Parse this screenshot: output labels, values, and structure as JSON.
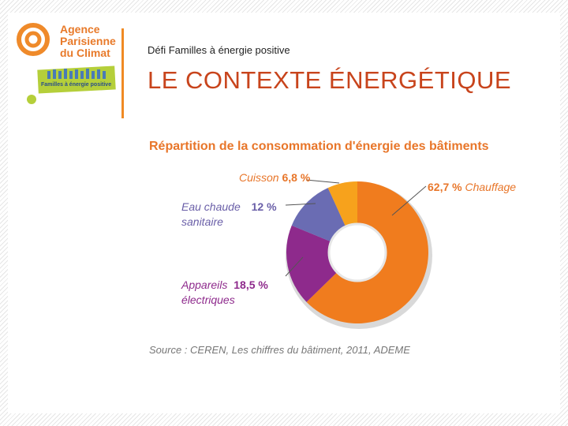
{
  "header": {
    "org_name": "Agence\nParisienne\ndu Climat",
    "badge_text": "Familles à énergie positive",
    "subtitle": "Défi Familles à énergie positive",
    "title": "LE CONTEXTE ÉNERGÉTIQUE"
  },
  "chart_data": {
    "type": "pie",
    "title": "Répartition de la consommation d'énergie des bâtiments",
    "series": [
      {
        "name": "Chauffage",
        "value": 62.7,
        "label": "62,7 %",
        "color": "#f07c1e"
      },
      {
        "name": "Appareils électriques",
        "value": 18.5,
        "label": "18,5 %",
        "color": "#8e2a8c"
      },
      {
        "name": "Eau chaude sanitaire",
        "value": 12,
        "label": "12 %",
        "color": "#6a6cb3"
      },
      {
        "name": "Cuisson",
        "value": 6.8,
        "label": "6,8 %",
        "color": "#f7a21c"
      }
    ],
    "labels": {
      "chauffage_value": "62,7 %",
      "chauffage_name": "Chauffage",
      "cuisson_name": "Cuisson",
      "cuisson_value": "6,8 %",
      "eau_name_1": "Eau chaude",
      "eau_name_2": "sanitaire",
      "eau_value": "12 %",
      "app_name_1": "Appareils",
      "app_name_2": "électriques",
      "app_value": "18,5 %"
    },
    "source": "Source : CEREN, Les chiffres du bâtiment, 2011, ADEME"
  },
  "colors": {
    "accent": "#e8762a",
    "title": "#c8441c",
    "label_text": "#6a5fa8",
    "value_text": "#8e2a8c"
  }
}
